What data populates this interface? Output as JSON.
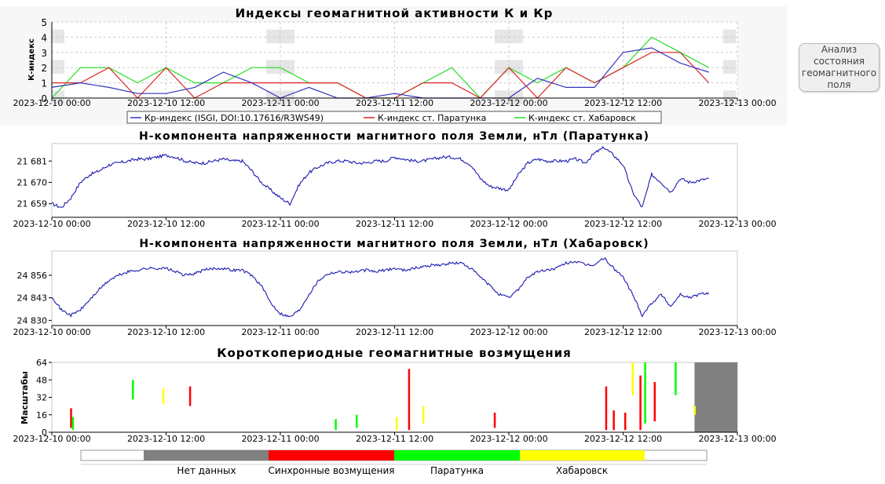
{
  "analyze_button": {
    "label": "Анализ\nсостояния\nгеомагнитного\nполя"
  },
  "colors": {
    "kp": "#3333bb",
    "paratunka": "#dd2222",
    "khabarovsk": "#22dd22",
    "nodata": "#808080",
    "sync": "#ff0000",
    "bar_paratunka": "#00ff00",
    "bar_khabarovsk": "#ffff00",
    "mag_line": "#1a1ab0"
  },
  "x_axis": {
    "ticks": [
      "2023-12-10 00:00",
      "2023-12-10 12:00",
      "2023-12-11 00:00",
      "2023-12-11 12:00",
      "2023-12-12 00:00",
      "2023-12-12 12:00",
      "2023-12-13 00:00"
    ]
  },
  "chart_data": [
    {
      "type": "line",
      "title": "Индексы геомагнитной активности К и Кр",
      "ylabel": "К-индекс",
      "ylim": [
        0,
        5
      ],
      "yticks": [
        "0",
        "1",
        "2",
        "3",
        "4",
        "5"
      ],
      "x_unit": "hours since 2023-12-10 00:00",
      "legend_position": "bottom",
      "series": [
        {
          "name": "Кр-индекс (ISGI, DOI:10.17616/R3WS49)",
          "x": [
            0,
            3,
            6,
            9,
            12,
            15,
            18,
            21,
            24,
            27,
            30,
            33,
            36,
            39,
            42,
            45,
            48,
            51,
            54,
            57,
            60,
            63,
            66,
            69
          ],
          "y": [
            0.7,
            1.0,
            0.7,
            0.3,
            0.3,
            0.7,
            1.7,
            1.0,
            0.0,
            0.7,
            0.0,
            0.0,
            0.3,
            0.0,
            0.0,
            0.0,
            0.0,
            1.3,
            0.7,
            0.7,
            3.0,
            3.3,
            2.3,
            1.7
          ]
        },
        {
          "name": "К-индекс ст. Паратунка",
          "x": [
            0,
            3,
            6,
            9,
            12,
            15,
            18,
            21,
            24,
            27,
            30,
            33,
            36,
            39,
            42,
            45,
            48,
            51,
            54,
            57,
            60,
            63,
            66,
            69
          ],
          "y": [
            1,
            1,
            2,
            0,
            2,
            0,
            1,
            1,
            1,
            1,
            1,
            0,
            0,
            1,
            1,
            0,
            2,
            0,
            2,
            1,
            2,
            3,
            3,
            1
          ]
        },
        {
          "name": "К-индекс ст. Хабаровск",
          "x": [
            0,
            3,
            6,
            9,
            12,
            15,
            18,
            21,
            24,
            27,
            30,
            33,
            36,
            39,
            42,
            45,
            48,
            51,
            54,
            57,
            60,
            63,
            66,
            69
          ],
          "y": [
            0,
            2,
            2,
            1,
            2,
            1,
            1,
            2,
            2,
            1,
            1,
            0,
            0,
            1,
            2,
            0,
            2,
            1,
            2,
            1,
            2,
            4,
            3,
            2
          ]
        }
      ],
      "nodata_markers_x": [
        0,
        24,
        48,
        72
      ]
    },
    {
      "type": "line",
      "title": "H-компонента напряженности магнитного поля Земли, нТл (Паратунка)",
      "yticks": [
        "21 659",
        "21 670",
        "21 681"
      ],
      "ylim": [
        21652,
        21690
      ],
      "x_unit": "hours since 2023-12-10 00:00",
      "series": [
        {
          "name": "",
          "x": [
            0,
            1,
            2,
            3,
            4,
            5,
            6,
            7,
            8,
            9,
            10,
            11,
            12,
            13,
            14,
            15,
            16,
            17,
            18,
            19,
            20,
            21,
            22,
            23,
            24,
            25,
            26,
            27,
            28,
            29,
            30,
            31,
            32,
            33,
            34,
            35,
            36,
            37,
            38,
            39,
            40,
            41,
            42,
            43,
            44,
            45,
            46,
            47,
            48,
            49,
            50,
            51,
            52,
            53,
            54,
            55,
            56,
            57,
            58,
            59,
            60,
            61,
            62,
            63,
            64,
            65,
            66,
            67,
            68,
            69
          ],
          "y": [
            21659,
            21657,
            21662,
            21670,
            21674,
            21676,
            21679,
            21680,
            21681,
            21682,
            21682,
            21683,
            21684,
            21683,
            21681,
            21680,
            21680,
            21681,
            21682,
            21681,
            21681,
            21676,
            21670,
            21666,
            21662,
            21659,
            21669,
            21675,
            21678,
            21680,
            21681,
            21681,
            21680,
            21680,
            21681,
            21681,
            21683,
            21682,
            21681,
            21681,
            21682,
            21683,
            21683,
            21682,
            21679,
            21672,
            21668,
            21667,
            21666,
            21674,
            21680,
            21682,
            21681,
            21681,
            21681,
            21682,
            21680,
            21685,
            21688,
            21684,
            21679,
            21665,
            21657,
            21674,
            21670,
            21665,
            21672,
            21670,
            21671,
            21672
          ]
        }
      ]
    },
    {
      "type": "line",
      "title": "H-компонента напряженности магнитного поля Земли, нТл (Хабаровск)",
      "yticks": [
        "24 830",
        "24 843",
        "24 856"
      ],
      "ylim": [
        24827,
        24870
      ],
      "x_unit": "hours since 2023-12-10 00:00",
      "series": [
        {
          "name": "",
          "x": [
            0,
            1,
            2,
            3,
            4,
            5,
            6,
            7,
            8,
            9,
            10,
            11,
            12,
            13,
            14,
            15,
            16,
            17,
            18,
            19,
            20,
            21,
            22,
            23,
            24,
            25,
            26,
            27,
            28,
            29,
            30,
            31,
            32,
            33,
            34,
            35,
            36,
            37,
            38,
            39,
            40,
            41,
            42,
            43,
            44,
            45,
            46,
            47,
            48,
            49,
            50,
            51,
            52,
            53,
            54,
            55,
            56,
            57,
            58,
            59,
            60,
            61,
            62,
            63,
            64,
            65,
            66,
            67,
            68,
            69
          ],
          "y": [
            24844,
            24836,
            24833,
            24836,
            24842,
            24848,
            24853,
            24856,
            24858,
            24859,
            24860,
            24860,
            24860,
            24858,
            24856,
            24857,
            24859,
            24860,
            24860,
            24859,
            24859,
            24856,
            24850,
            24840,
            24834,
            24832,
            24836,
            24845,
            24853,
            24857,
            24858,
            24858,
            24858,
            24859,
            24858,
            24859,
            24860,
            24859,
            24860,
            24861,
            24862,
            24862,
            24863,
            24863,
            24860,
            24855,
            24850,
            24845,
            24843,
            24848,
            24855,
            24858,
            24859,
            24860,
            24863,
            24864,
            24862,
            24862,
            24866,
            24860,
            24855,
            24845,
            24833,
            24840,
            24845,
            24838,
            24845,
            24843,
            24845,
            24846
          ]
        }
      ]
    },
    {
      "type": "heatmap",
      "title": "Короткопериодные геомагнитные возмущения",
      "ylabel": "Масштабы",
      "ylim": [
        0,
        64
      ],
      "yticks": [
        "0",
        "16",
        "32",
        "48",
        "64"
      ],
      "x_unit": "hours since 2023-12-10 00:00",
      "events": [
        {
          "x": 2.0,
          "scale_min": 4,
          "scale_max": 22,
          "category": "sync"
        },
        {
          "x": 2.2,
          "scale_min": 2,
          "scale_max": 14,
          "category": "paratunka"
        },
        {
          "x": 8.5,
          "scale_min": 30,
          "scale_max": 48,
          "category": "paratunka"
        },
        {
          "x": 11.7,
          "scale_min": 26,
          "scale_max": 40,
          "category": "khabarovsk"
        },
        {
          "x": 14.5,
          "scale_min": 24,
          "scale_max": 42,
          "category": "sync"
        },
        {
          "x": 29.8,
          "scale_min": 2,
          "scale_max": 12,
          "category": "paratunka"
        },
        {
          "x": 32.0,
          "scale_min": 4,
          "scale_max": 16,
          "category": "paratunka"
        },
        {
          "x": 36.2,
          "scale_min": 2,
          "scale_max": 14,
          "category": "khabarovsk"
        },
        {
          "x": 37.5,
          "scale_min": 2,
          "scale_max": 58,
          "category": "sync"
        },
        {
          "x": 39.0,
          "scale_min": 8,
          "scale_max": 24,
          "category": "khabarovsk"
        },
        {
          "x": 46.5,
          "scale_min": 4,
          "scale_max": 18,
          "category": "sync"
        },
        {
          "x": 58.2,
          "scale_min": 2,
          "scale_max": 42,
          "category": "sync"
        },
        {
          "x": 59.0,
          "scale_min": 2,
          "scale_max": 20,
          "category": "sync"
        },
        {
          "x": 60.2,
          "scale_min": 2,
          "scale_max": 18,
          "category": "sync"
        },
        {
          "x": 61.0,
          "scale_min": 34,
          "scale_max": 64,
          "category": "khabarovsk"
        },
        {
          "x": 61.8,
          "scale_min": 2,
          "scale_max": 52,
          "category": "sync"
        },
        {
          "x": 62.3,
          "scale_min": 8,
          "scale_max": 64,
          "category": "paratunka"
        },
        {
          "x": 63.3,
          "scale_min": 10,
          "scale_max": 46,
          "category": "sync"
        },
        {
          "x": 65.5,
          "scale_min": 34,
          "scale_max": 64,
          "category": "paratunka"
        },
        {
          "x": 67.5,
          "scale_min": 16,
          "scale_max": 24,
          "category": "khabarovsk"
        }
      ],
      "nodata_ranges": [
        [
          67.5,
          72
        ]
      ],
      "legend": [
        "Нет данных",
        "Синхронные возмущения",
        "Паратунка",
        "Хабаровск"
      ]
    }
  ]
}
